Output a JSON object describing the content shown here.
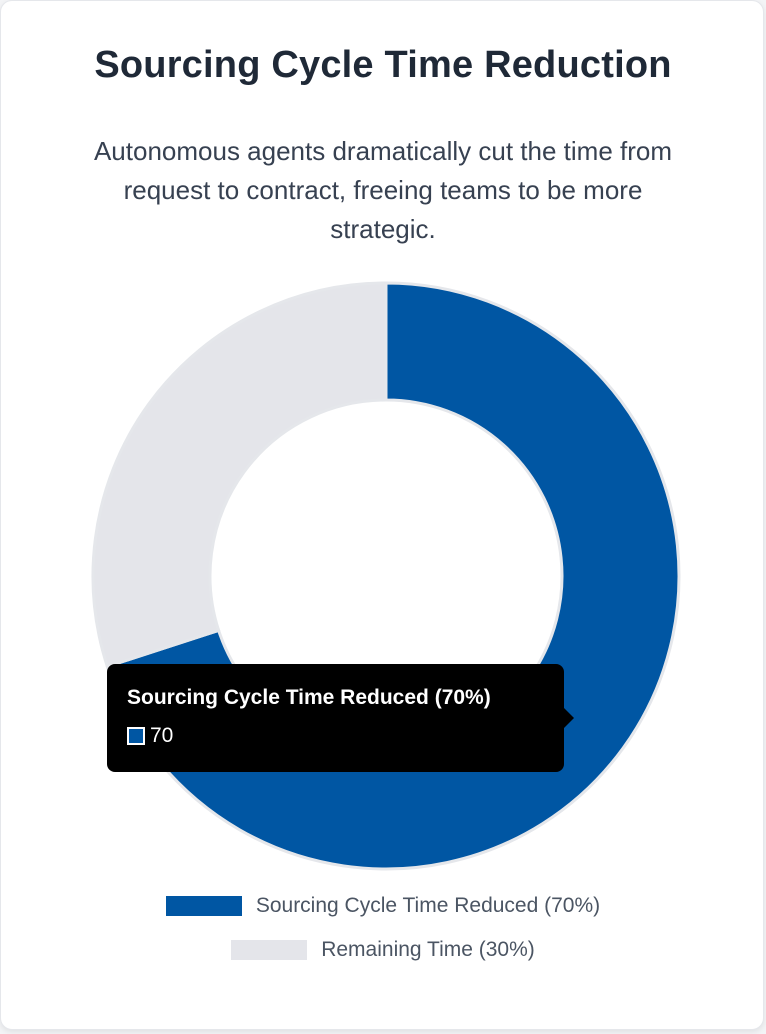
{
  "chart_data": {
    "type": "pie",
    "variant": "doughnut",
    "title": "Sourcing Cycle Time Reduction",
    "subtitle": "Autonomous agents dramatically cut the time from request to contract, freeing teams to be more strategic.",
    "series": [
      {
        "name": "Sourcing Cycle Time Reduced (70%)",
        "value": 70,
        "color": "#0056a3"
      },
      {
        "name": "Remaining Time (30%)",
        "value": 30,
        "color": "#e4e5ea"
      }
    ],
    "legend_position": "bottom",
    "tooltip": {
      "title": "Sourcing Cycle Time Reduced (70%)",
      "value": "70",
      "series_index": 0
    }
  }
}
